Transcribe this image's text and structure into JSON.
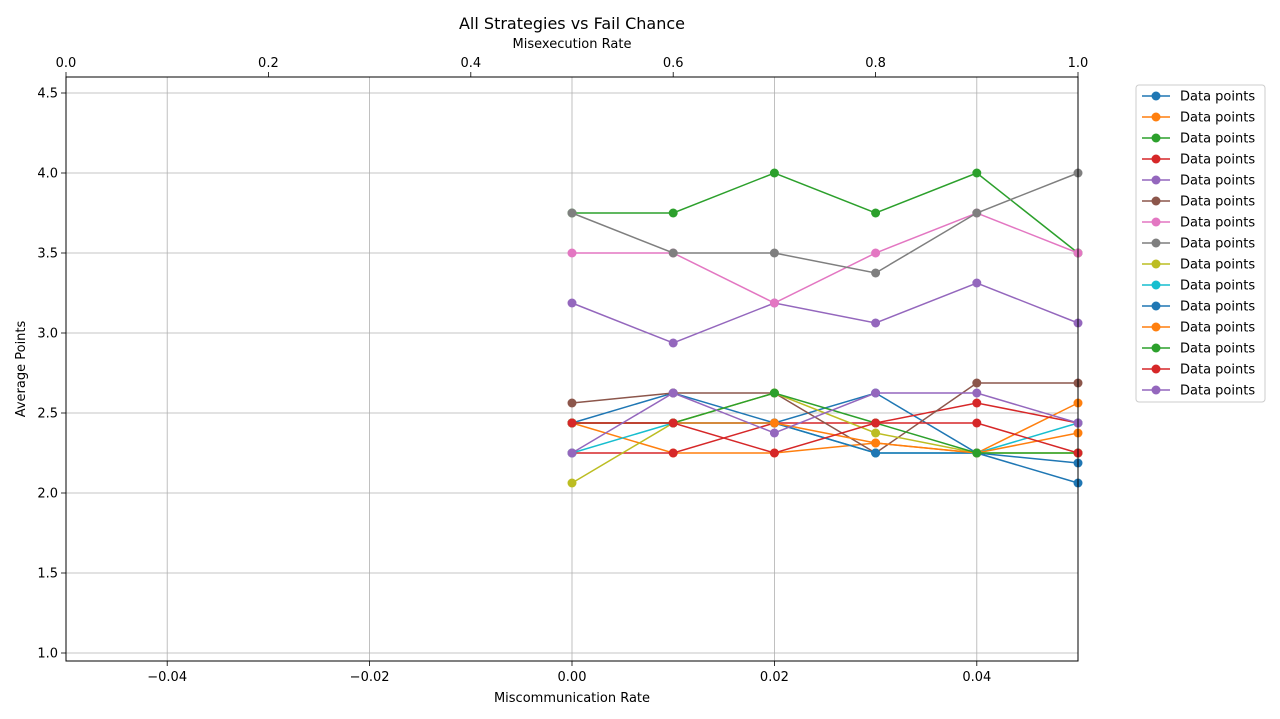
{
  "chart_data": {
    "type": "line",
    "title": "All Strategies vs Fail Chance",
    "xlabel": "Miscommunication Rate",
    "ylabel": "Average Points",
    "x2label": "Misexecution Rate",
    "xlim": [
      -0.05,
      0.05
    ],
    "ylim": [
      0.95,
      4.6
    ],
    "x2lim": [
      0.0,
      1.0
    ],
    "xticks": [
      "−0.04",
      "−0.02",
      "0.00",
      "0.02",
      "0.04"
    ],
    "xtick_values": [
      -0.04,
      -0.02,
      0.0,
      0.02,
      0.04
    ],
    "yticks": [
      "1.0",
      "1.5",
      "2.0",
      "2.5",
      "3.0",
      "3.5",
      "4.0",
      "4.5"
    ],
    "ytick_values": [
      1.0,
      1.5,
      2.0,
      2.5,
      3.0,
      3.5,
      4.0,
      4.5
    ],
    "x2ticks": [
      "0.0",
      "0.2",
      "0.4",
      "0.6",
      "0.8",
      "1.0"
    ],
    "x2tick_values": [
      0.0,
      0.2,
      0.4,
      0.6,
      0.8,
      1.0
    ],
    "grid": true,
    "legend_position": "outside-right",
    "x": [
      0.0,
      0.01,
      0.02,
      0.03,
      0.04,
      0.05
    ],
    "series": [
      {
        "name": "Data points",
        "color": "#1f77b4",
        "values": [
          2.4375,
          2.625,
          2.4375,
          2.625,
          2.25,
          2.0625
        ]
      },
      {
        "name": "Data points",
        "color": "#ff7f0e",
        "values": [
          2.4375,
          2.25,
          2.25,
          2.3125,
          2.25,
          2.5625
        ]
      },
      {
        "name": "Data points",
        "color": "#2ca02c",
        "values": [
          3.75,
          3.75,
          4.0,
          3.75,
          4.0,
          3.5
        ]
      },
      {
        "name": "Data points",
        "color": "#d62728",
        "values": [
          2.25,
          2.25,
          2.4375,
          2.4375,
          2.5625,
          2.4375
        ]
      },
      {
        "name": "Data points",
        "color": "#9467bd",
        "values": [
          3.1875,
          2.9375,
          3.1875,
          3.0625,
          3.3125,
          3.0625
        ]
      },
      {
        "name": "Data points",
        "color": "#8c564b",
        "values": [
          2.5625,
          2.625,
          2.625,
          2.25,
          2.6875,
          2.6875
        ]
      },
      {
        "name": "Data points",
        "color": "#e377c2",
        "values": [
          3.5,
          3.5,
          3.1875,
          3.5,
          3.75,
          3.5
        ]
      },
      {
        "name": "Data points",
        "color": "#7f7f7f",
        "values": [
          3.75,
          3.5,
          3.5,
          3.375,
          3.75,
          4.0
        ]
      },
      {
        "name": "Data points",
        "color": "#bcbd22",
        "values": [
          2.0625,
          2.4375,
          2.625,
          2.375,
          2.25,
          2.25
        ]
      },
      {
        "name": "Data points",
        "color": "#17becf",
        "values": [
          2.25,
          2.4375,
          2.4375,
          2.25,
          2.25,
          2.4375
        ]
      },
      {
        "name": "Data points",
        "color": "#1f77b4",
        "values": [
          2.4375,
          2.4375,
          2.4375,
          2.25,
          2.25,
          2.1875
        ]
      },
      {
        "name": "Data points",
        "color": "#ff7f0e",
        "values": [
          2.4375,
          2.4375,
          2.4375,
          2.3125,
          2.25,
          2.375
        ]
      },
      {
        "name": "Data points",
        "color": "#2ca02c",
        "values": [
          2.4375,
          2.4375,
          2.625,
          2.4375,
          2.25,
          2.25
        ]
      },
      {
        "name": "Data points",
        "color": "#d62728",
        "values": [
          2.4375,
          2.4375,
          2.25,
          2.4375,
          2.4375,
          2.25
        ]
      },
      {
        "name": "Data points",
        "color": "#9467bd",
        "values": [
          2.25,
          2.625,
          2.375,
          2.625,
          2.625,
          2.4375
        ]
      }
    ]
  }
}
